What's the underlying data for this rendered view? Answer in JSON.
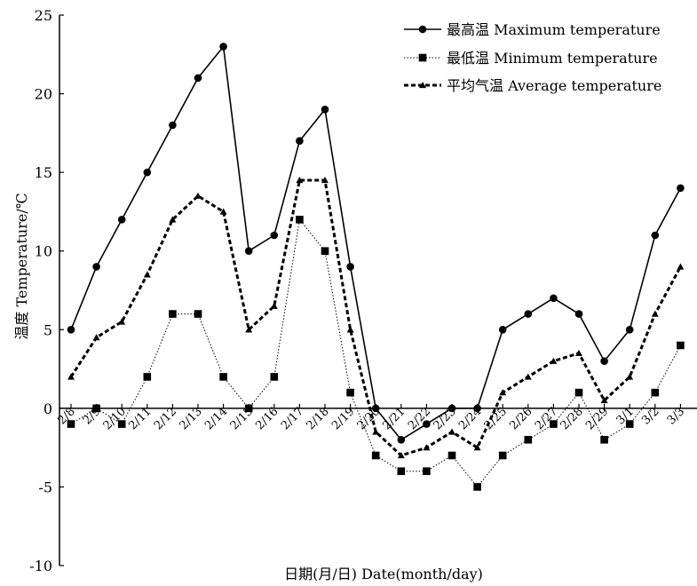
{
  "chart_data": {
    "type": "line",
    "xlabel": "日期(月/日) Date(month/day)",
    "ylabel": "温度 Temperature/℃",
    "ylim": [
      -10,
      25
    ],
    "yticks": [
      -10,
      -5,
      0,
      5,
      10,
      15,
      20,
      25
    ],
    "grid": false,
    "legend_position": "top-right",
    "categories": [
      "2/8",
      "2/9",
      "2/10",
      "2/11",
      "2/12",
      "2/13",
      "2/14",
      "2/15",
      "2/16",
      "2/17",
      "2/18",
      "2/19",
      "2/20",
      "2/21",
      "2/22",
      "2/23",
      "2/24",
      "2/25",
      "2/26",
      "2/27",
      "2/28",
      "2/29",
      "3/1",
      "3/2",
      "3/3"
    ],
    "series": [
      {
        "name": "最高温 Maximum temperature",
        "marker": "circle",
        "line_style": "solid",
        "values": [
          5,
          9,
          12,
          15,
          18,
          21,
          23,
          10,
          11,
          17,
          19,
          9,
          0,
          -2,
          -1,
          0,
          0,
          5,
          6,
          7,
          6,
          3,
          5,
          11,
          14
        ]
      },
      {
        "name": "最低温 Minimum temperature",
        "marker": "square",
        "line_style": "dotted",
        "values": [
          -1,
          0,
          -1,
          2,
          6,
          6,
          2,
          0,
          2,
          12,
          10,
          1,
          -3,
          -4,
          -4,
          -3,
          -5,
          -3,
          -2,
          -1,
          1,
          -2,
          -1,
          1,
          4
        ]
      },
      {
        "name": "平均气温 Average temperature",
        "marker": "triangle",
        "line_style": "dashed",
        "values": [
          2,
          4.5,
          5.5,
          8.5,
          12,
          13.5,
          12.5,
          5,
          6.5,
          14.5,
          14.5,
          5,
          -1.5,
          -3,
          -2.5,
          -1.5,
          -2.5,
          1,
          2,
          3,
          3.5,
          0.5,
          2,
          6,
          9
        ]
      }
    ]
  }
}
